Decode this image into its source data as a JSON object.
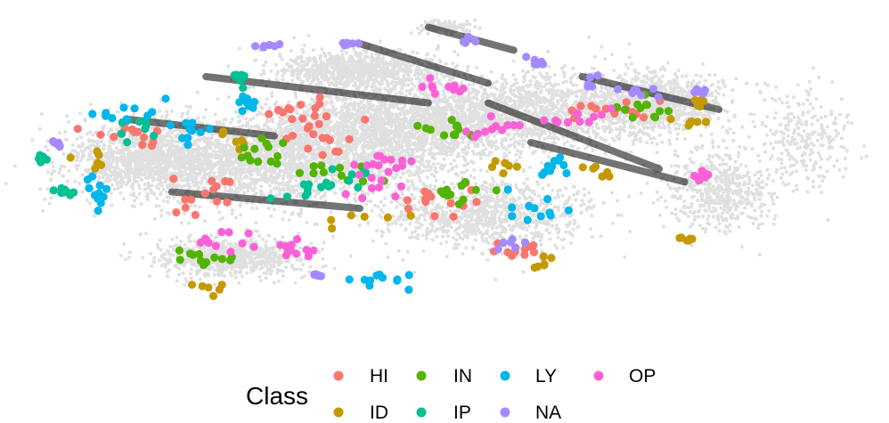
{
  "chart_data": {
    "type": "scatter",
    "title": "",
    "xlabel": "",
    "ylabel": "",
    "axes_visible": false,
    "grid": false,
    "background_color": "#000000",
    "legend": {
      "title": "Class",
      "placement": "bottom",
      "entries": [
        {
          "name": "HI",
          "color": "#F8766D"
        },
        {
          "name": "ID",
          "color": "#C49A00"
        },
        {
          "name": "IN",
          "color": "#53B400"
        },
        {
          "name": "IP",
          "color": "#00C094"
        },
        {
          "name": "LY",
          "color": "#00B6EB"
        },
        {
          "name": "NA",
          "color": "#A58AFF"
        },
        {
          "name": "OP",
          "color": "#FB61D7"
        }
      ]
    },
    "series": [
      {
        "name": "HI",
        "color": "#F8766D",
        "count": 95,
        "clusters": [
          [
            0.32,
            0.3,
            0.05,
            0.04
          ],
          [
            0.35,
            0.4,
            0.04,
            0.04
          ],
          [
            0.13,
            0.38,
            0.04,
            0.03
          ],
          [
            0.22,
            0.55,
            0.03,
            0.05
          ],
          [
            0.48,
            0.58,
            0.05,
            0.05
          ],
          [
            0.59,
            0.72,
            0.03,
            0.02
          ],
          [
            0.7,
            0.3,
            0.04,
            0.03
          ]
        ]
      },
      {
        "name": "ID",
        "color": "#C49A00",
        "count": 60,
        "clusters": [
          [
            0.26,
            0.38,
            0.04,
            0.03
          ],
          [
            0.09,
            0.48,
            0.02,
            0.05
          ],
          [
            0.4,
            0.62,
            0.04,
            0.03
          ],
          [
            0.57,
            0.47,
            0.03,
            0.03
          ],
          [
            0.78,
            0.33,
            0.03,
            0.03
          ],
          [
            0.62,
            0.76,
            0.02,
            0.02
          ],
          [
            0.23,
            0.85,
            0.02,
            0.02
          ],
          [
            0.68,
            0.48,
            0.02,
            0.02
          ],
          [
            0.8,
            0.28,
            0.01,
            0.02
          ],
          [
            0.78,
            0.69,
            0.01,
            0.01
          ]
        ]
      },
      {
        "name": "IN",
        "color": "#53B400",
        "count": 70,
        "clusters": [
          [
            0.36,
            0.48,
            0.05,
            0.05
          ],
          [
            0.28,
            0.43,
            0.03,
            0.04
          ],
          [
            0.5,
            0.36,
            0.03,
            0.04
          ],
          [
            0.73,
            0.3,
            0.04,
            0.03
          ],
          [
            0.22,
            0.75,
            0.03,
            0.02
          ],
          [
            0.52,
            0.55,
            0.03,
            0.03
          ]
        ]
      },
      {
        "name": "IP",
        "color": "#00C094",
        "count": 55,
        "clusters": [
          [
            0.33,
            0.55,
            0.04,
            0.04
          ],
          [
            0.38,
            0.5,
            0.04,
            0.04
          ],
          [
            0.26,
            0.2,
            0.01,
            0.04
          ],
          [
            0.14,
            0.36,
            0.02,
            0.03
          ],
          [
            0.03,
            0.45,
            0.01,
            0.01
          ],
          [
            0.06,
            0.55,
            0.01,
            0.01
          ]
        ]
      },
      {
        "name": "LY",
        "color": "#00B6EB",
        "count": 75,
        "clusters": [
          [
            0.12,
            0.31,
            0.03,
            0.02
          ],
          [
            0.09,
            0.55,
            0.01,
            0.06
          ],
          [
            0.42,
            0.82,
            0.03,
            0.02
          ],
          [
            0.2,
            0.37,
            0.02,
            0.03
          ],
          [
            0.6,
            0.6,
            0.03,
            0.04
          ],
          [
            0.27,
            0.28,
            0.01,
            0.02
          ],
          [
            0.63,
            0.47,
            0.02,
            0.02
          ]
        ]
      },
      {
        "name": "NA",
        "color": "#A58AFF",
        "count": 60,
        "clusters": [
          [
            0.53,
            0.09,
            0.01,
            0.01
          ],
          [
            0.6,
            0.15,
            0.02,
            0.02
          ],
          [
            0.68,
            0.22,
            0.02,
            0.02
          ],
          [
            0.73,
            0.25,
            0.02,
            0.02
          ],
          [
            0.05,
            0.4,
            0.01,
            0.01
          ],
          [
            0.35,
            0.8,
            0.01,
            0.01
          ],
          [
            0.56,
            0.72,
            0.03,
            0.02
          ],
          [
            0.29,
            0.11,
            0.01,
            0.01
          ],
          [
            0.39,
            0.1,
            0.01,
            0.01
          ],
          [
            0.8,
            0.24,
            0.01,
            0.01
          ]
        ]
      },
      {
        "name": "OP",
        "color": "#FB61D7",
        "count": 90,
        "clusters": [
          [
            0.4,
            0.52,
            0.04,
            0.04
          ],
          [
            0.66,
            0.32,
            0.03,
            0.02
          ],
          [
            0.5,
            0.24,
            0.03,
            0.03
          ],
          [
            0.44,
            0.46,
            0.02,
            0.03
          ],
          [
            0.56,
            0.35,
            0.03,
            0.03
          ],
          [
            0.8,
            0.5,
            0.01,
            0.01
          ],
          [
            0.24,
            0.7,
            0.03,
            0.03
          ],
          [
            0.32,
            0.73,
            0.02,
            0.02
          ]
        ]
      }
    ]
  }
}
